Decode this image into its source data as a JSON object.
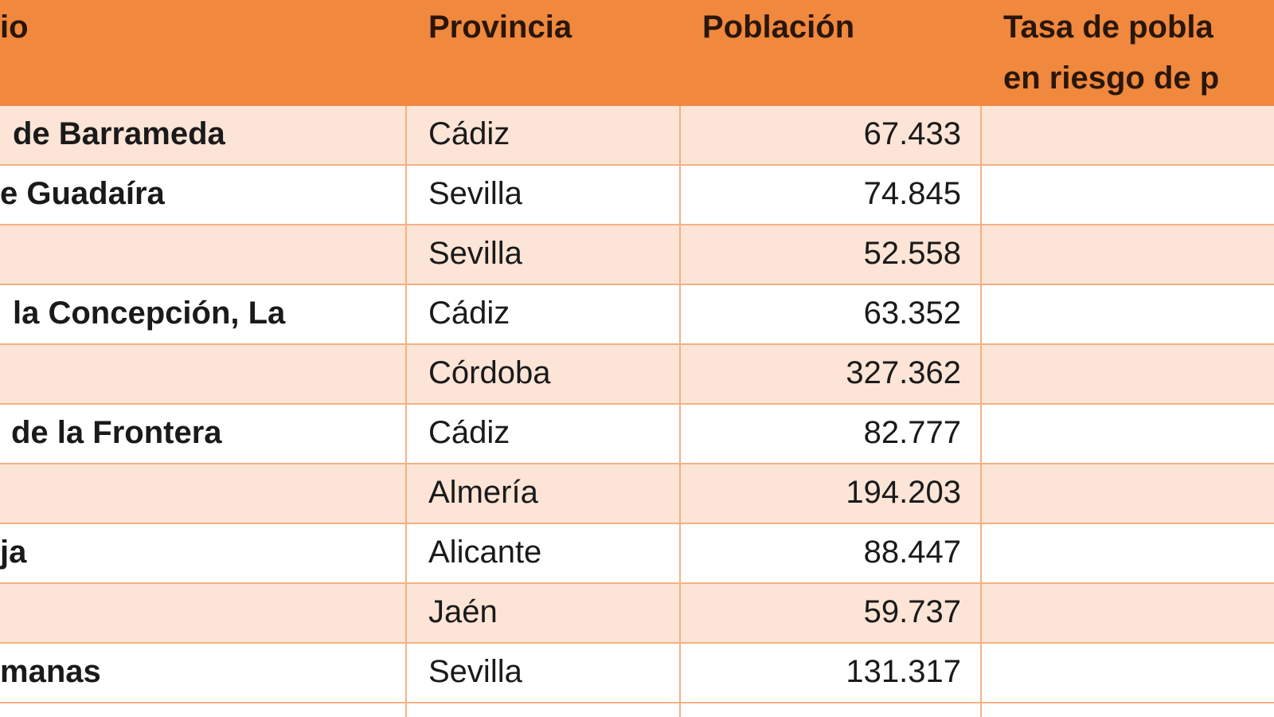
{
  "colors": {
    "header_bg": "#F0883E",
    "band_light": "#FCE4D6",
    "grid": "#F4B183"
  },
  "header": {
    "municipio": "io",
    "provincia": "Provincia",
    "poblacion": "Población",
    "tasa_line1": "Tasa de pobla",
    "tasa_line2": "en riesgo de p"
  },
  "rows": [
    {
      "municipio": "de Barrameda",
      "provincia": "Cádiz",
      "poblacion": "67.433"
    },
    {
      "municipio": "e Guadaíra",
      "provincia": "Sevilla",
      "poblacion": "74.845"
    },
    {
      "municipio": "",
      "provincia": "Sevilla",
      "poblacion": "52.558"
    },
    {
      "municipio": "la Concepción,  La",
      "provincia": "Cádiz",
      "poblacion": "63.352"
    },
    {
      "municipio": "",
      "provincia": "Córdoba",
      "poblacion": "327.362"
    },
    {
      "municipio": "de la Frontera",
      "provincia": "Cádiz",
      "poblacion": "82.777"
    },
    {
      "municipio": "",
      "provincia": "Almería",
      "poblacion": "194.203"
    },
    {
      "municipio": "ja",
      "provincia": "Alicante",
      "poblacion": "88.447"
    },
    {
      "municipio": "",
      "provincia": "Jaén",
      "poblacion": "59.737"
    },
    {
      "municipio": "manas",
      "provincia": "Sevilla",
      "poblacion": "131.317"
    }
  ]
}
